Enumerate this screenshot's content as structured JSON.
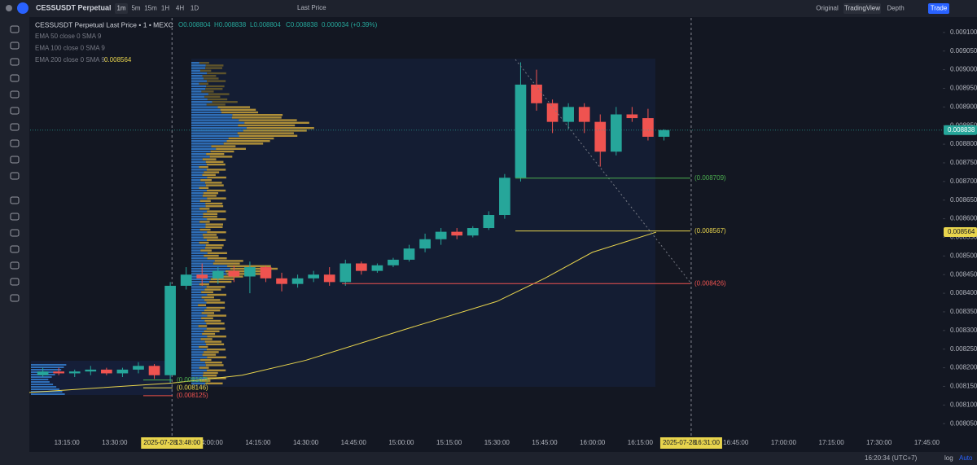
{
  "toolbar": {
    "symbol": "CESSUSDT Perpetual",
    "intervals": [
      "1m",
      "5m",
      "15m",
      "1H",
      "4H",
      "1D"
    ],
    "price_type": "Last Price",
    "views": [
      "Original",
      "TradingView",
      "Depth"
    ],
    "trade": "Trade"
  },
  "legend": {
    "title": "CESSUSDT Perpetual Last Price • 1 • MEXC",
    "ohlc": [
      "O0.008804",
      "H0.008838",
      "L0.008804",
      "C0.008838",
      "0.000034 (+0.39%)"
    ],
    "indicators": [
      "EMA 50 close 0 SMA 9",
      "EMA 100 close 0 SMA 9",
      "EMA 200 close 0 SMA 9"
    ]
  },
  "chart_data": {
    "type": "candlestick",
    "up_color": "#26a69a",
    "down_color": "#ef5350",
    "x": [
      "13:05:00",
      "13:10:00",
      "13:15:00",
      "13:20:00",
      "13:25:00",
      "13:30:00",
      "13:35:00",
      "13:40:00",
      "13:45:00",
      "13:50:00",
      "13:55:00",
      "14:00:00",
      "14:05:00",
      "14:10:00",
      "14:15:00",
      "14:20:00",
      "14:25:00",
      "14:30:00",
      "14:35:00",
      "14:40:00",
      "14:45:00",
      "14:50:00",
      "14:55:00",
      "15:00:00",
      "15:05:00",
      "15:10:00",
      "15:15:00",
      "15:20:00",
      "15:25:00",
      "15:30:00",
      "15:35:00",
      "15:40:00",
      "15:45:00",
      "15:50:00",
      "15:55:00",
      "16:00:00",
      "16:05:00",
      "16:10:00",
      "16:15:00",
      "16:20:00"
    ],
    "open": [
      0.00818,
      0.00819,
      0.008185,
      0.00819,
      0.008195,
      0.008185,
      0.008195,
      0.008205,
      0.00818,
      0.00842,
      0.00845,
      0.00844,
      0.00846,
      0.008445,
      0.00847,
      0.00844,
      0.008425,
      0.00844,
      0.00845,
      0.00843,
      0.00848,
      0.00846,
      0.008475,
      0.00849,
      0.00852,
      0.008545,
      0.008565,
      0.008555,
      0.008575,
      0.00861,
      0.00871,
      0.00896,
      0.00891,
      0.00886,
      0.0089,
      0.00886,
      0.00878,
      0.00888,
      0.00887,
      0.00882
    ],
    "high": [
      0.0082,
      0.0082,
      0.008195,
      0.008205,
      0.0082,
      0.0082,
      0.008215,
      0.00821,
      0.00843,
      0.00847,
      0.00848,
      0.00847,
      0.008475,
      0.008485,
      0.008475,
      0.008455,
      0.00845,
      0.00846,
      0.00847,
      0.00849,
      0.008485,
      0.00848,
      0.008495,
      0.00853,
      0.00856,
      0.008575,
      0.008575,
      0.00858,
      0.00862,
      0.00872,
      0.00902,
      0.009,
      0.00892,
      0.00891,
      0.00891,
      0.00888,
      0.0089,
      0.0089,
      0.008895,
      0.00884
    ],
    "low": [
      0.008175,
      0.00818,
      0.008175,
      0.00818,
      0.00818,
      0.008175,
      0.008185,
      0.00817,
      0.00816,
      0.00841,
      0.00842,
      0.008425,
      0.00843,
      0.0084,
      0.00843,
      0.008405,
      0.008415,
      0.00843,
      0.00842,
      0.00842,
      0.00845,
      0.008455,
      0.00847,
      0.008485,
      0.00851,
      0.00853,
      0.008545,
      0.00855,
      0.00857,
      0.0086,
      0.0087,
      0.00889,
      0.00883,
      0.00884,
      0.00883,
      0.00874,
      0.00877,
      0.00886,
      0.00881,
      0.00881
    ],
    "close": [
      0.00819,
      0.008185,
      0.00819,
      0.008195,
      0.008185,
      0.008195,
      0.008205,
      0.00818,
      0.00842,
      0.00845,
      0.00844,
      0.00846,
      0.008445,
      0.00847,
      0.00844,
      0.008425,
      0.00844,
      0.00845,
      0.00843,
      0.00848,
      0.00846,
      0.008475,
      0.00849,
      0.00852,
      0.008545,
      0.008565,
      0.008555,
      0.008575,
      0.00861,
      0.00871,
      0.00896,
      0.00891,
      0.00886,
      0.0089,
      0.00886,
      0.00878,
      0.00888,
      0.00887,
      0.00882,
      0.008838
    ],
    "ema": {
      "color": "#e8d44d",
      "x": [
        "13:02:00",
        "13:48:00",
        "14:10:00",
        "14:30:00",
        "15:00:00",
        "15:30:00",
        "15:45:00",
        "16:00:00",
        "16:20:00"
      ],
      "values": [
        0.008133,
        0.008159,
        0.00818,
        0.00822,
        0.0083,
        0.008378,
        0.00844,
        0.00851,
        0.008564
      ],
      "last": {
        "value": 0.008564,
        "label": "0.008564"
      }
    },
    "xlim": [
      "12:54:00",
      "17:50:00"
    ],
    "ylim": [
      0.007998,
      0.009139
    ],
    "yticks": [
      {
        "value": 0.0091,
        "label": "0.009100"
      },
      {
        "value": 0.00905,
        "label": "0.009050"
      },
      {
        "value": 0.009,
        "label": "0.009000"
      },
      {
        "value": 0.00895,
        "label": "0.008950"
      },
      {
        "value": 0.0089,
        "label": "0.008900"
      },
      {
        "value": 0.00885,
        "label": "0.008850"
      },
      {
        "value": 0.0088,
        "label": "0.008800"
      },
      {
        "value": 0.00875,
        "label": "0.008750"
      },
      {
        "value": 0.0087,
        "label": "0.008700"
      },
      {
        "value": 0.00865,
        "label": "0.008650"
      },
      {
        "value": 0.0086,
        "label": "0.008600"
      },
      {
        "value": 0.00855,
        "label": "0.008550"
      },
      {
        "value": 0.0085,
        "label": "0.008500"
      },
      {
        "value": 0.00845,
        "label": "0.008450"
      },
      {
        "value": 0.0084,
        "label": "0.008400"
      },
      {
        "value": 0.00835,
        "label": "0.008350"
      },
      {
        "value": 0.0083,
        "label": "0.008300"
      },
      {
        "value": 0.00825,
        "label": "0.008250"
      },
      {
        "value": 0.0082,
        "label": "0.008200"
      },
      {
        "value": 0.00815,
        "label": "0.008150"
      },
      {
        "value": 0.0081,
        "label": "0.008100"
      },
      {
        "value": 0.00805,
        "label": "0.008050"
      }
    ],
    "xticks": [
      "13:15:00",
      "13:30:00",
      "14:00:00",
      "14:15:00",
      "14:30:00",
      "14:45:00",
      "15:00:00",
      "15:15:00",
      "15:30:00",
      "15:45:00",
      "16:00:00",
      "16:15:00",
      "16:45:00",
      "17:00:00",
      "17:15:00",
      "17:30:00",
      "17:45:00"
    ],
    "price_lines": [
      {
        "value": 0.008709,
        "label": "(0.008709)",
        "color": "#4caf50"
      },
      {
        "value": 0.008567,
        "label": "(0.008567)",
        "color": "#e8d44d"
      },
      {
        "value": 0.008426,
        "label": "(0.008426)",
        "color": "#ef5350"
      }
    ],
    "early_lines": [
      {
        "value": 0.008167,
        "label": "(0.008167)",
        "color": "#4caf50"
      },
      {
        "value": 0.008146,
        "label": "(0.008146)",
        "color": "#e8d44d"
      },
      {
        "value": 0.008125,
        "label": "(0.008125)",
        "color": "#ef5350"
      }
    ],
    "last_price": {
      "value": 0.008838,
      "label": "0.008838",
      "color": "#26a69a"
    },
    "crosshair": [
      {
        "date": "2025-07-28",
        "time": "13:48:00"
      },
      {
        "date": "2025-07-28",
        "time": "16:31:00"
      }
    ]
  },
  "status": {
    "time": "16:20:34 (UTC+7)",
    "log": "log",
    "auto": "Auto"
  }
}
